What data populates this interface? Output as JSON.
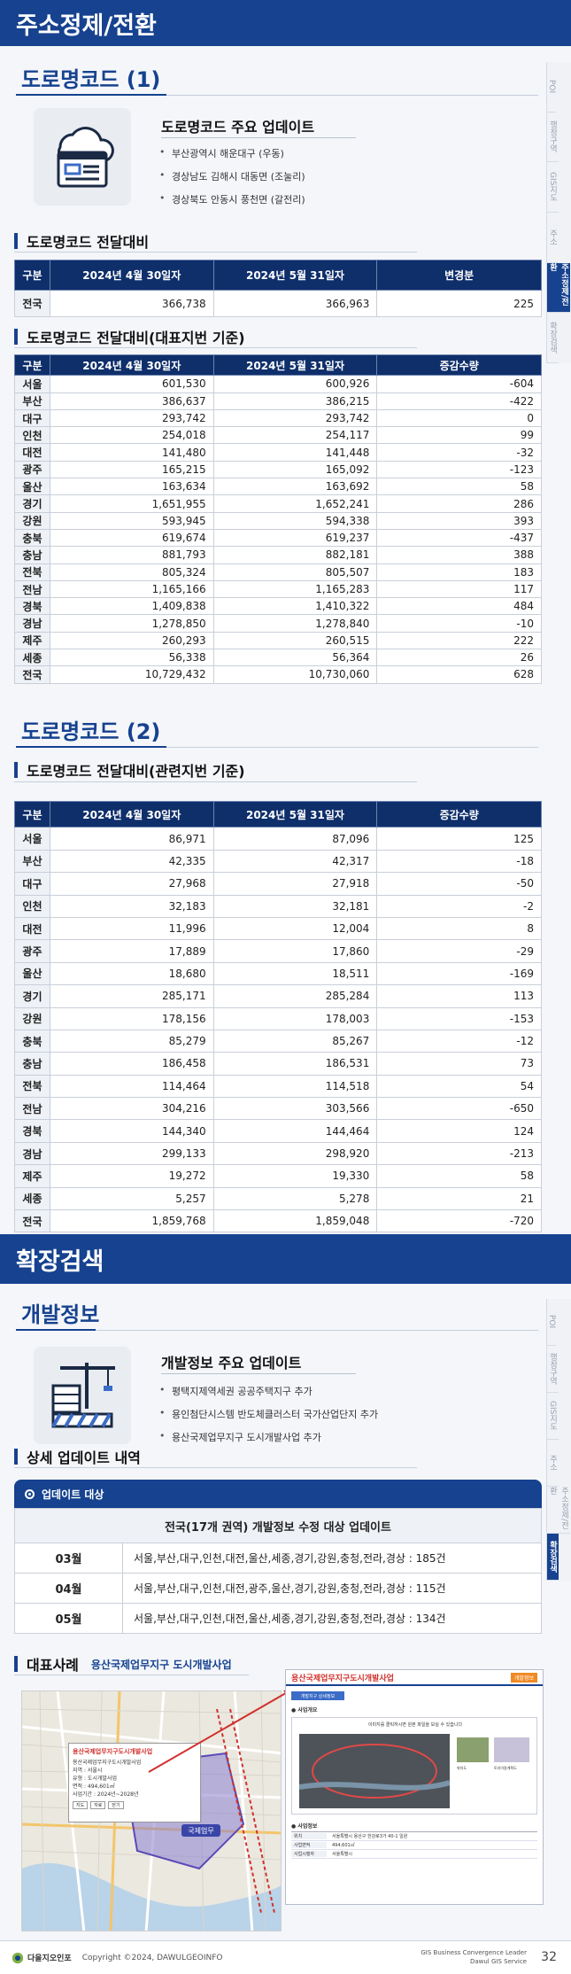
{
  "band1": {
    "title": "주소정제/전환"
  },
  "band2": {
    "title": "확장검색"
  },
  "sidenav1": [
    "POI",
    "행정구역",
    "GIS지도",
    "주소",
    "주소정제/전환",
    "확장검색"
  ],
  "sidenav1_active": 4,
  "sidenav2": [
    "POI",
    "행정구역",
    "GIS지도",
    "주소",
    "주소정제/전환",
    "확장검색"
  ],
  "sidenav2_active": 5,
  "road1": {
    "title": "도로명코드 (1)",
    "update_title": "도로명코드 주요 업데이트",
    "bullets": [
      "부산광역시 해운대구 (우동)",
      "경상남도 김해시 대동면 (조눌리)",
      "경상북도 안동시 풍천면 (갈전리)"
    ],
    "table1": {
      "title": "도로명코드 전달대비",
      "headers": [
        "구분",
        "2024년 4월 30일자",
        "2024년 5월 31일자",
        "변경분"
      ],
      "rows": [
        [
          "전국",
          "366,738",
          "366,963",
          "225"
        ]
      ]
    },
    "table2": {
      "title": "도로명코드 전달대비(대표지번 기준)",
      "headers": [
        "구분",
        "2024년 4월 30일자",
        "2024년 5월 31일자",
        "증감수량"
      ],
      "rows": [
        [
          "서울",
          "601,530",
          "600,926",
          "-604"
        ],
        [
          "부산",
          "386,637",
          "386,215",
          "-422"
        ],
        [
          "대구",
          "293,742",
          "293,742",
          "0"
        ],
        [
          "인천",
          "254,018",
          "254,117",
          "99"
        ],
        [
          "대전",
          "141,480",
          "141,448",
          "-32"
        ],
        [
          "광주",
          "165,215",
          "165,092",
          "-123"
        ],
        [
          "울산",
          "163,634",
          "163,692",
          "58"
        ],
        [
          "경기",
          "1,651,955",
          "1,652,241",
          "286"
        ],
        [
          "강원",
          "593,945",
          "594,338",
          "393"
        ],
        [
          "충북",
          "619,674",
          "619,237",
          "-437"
        ],
        [
          "충남",
          "881,793",
          "882,181",
          "388"
        ],
        [
          "전북",
          "805,324",
          "805,507",
          "183"
        ],
        [
          "전남",
          "1,165,166",
          "1,165,283",
          "117"
        ],
        [
          "경북",
          "1,409,838",
          "1,410,322",
          "484"
        ],
        [
          "경남",
          "1,278,850",
          "1,278,840",
          "-10"
        ],
        [
          "제주",
          "260,293",
          "260,515",
          "222"
        ],
        [
          "세종",
          "56,338",
          "56,364",
          "26"
        ],
        [
          "전국",
          "10,729,432",
          "10,730,060",
          "628"
        ]
      ]
    }
  },
  "road2": {
    "title": "도로명코드 (2)",
    "table": {
      "title": "도로명코드 전달대비(관련지번 기준)",
      "headers": [
        "구분",
        "2024년 4월 30일자",
        "2024년 5월 31일자",
        "증감수량"
      ],
      "rows": [
        [
          "서울",
          "86,971",
          "87,096",
          "125"
        ],
        [
          "부산",
          "42,335",
          "42,317",
          "-18"
        ],
        [
          "대구",
          "27,968",
          "27,918",
          "-50"
        ],
        [
          "인천",
          "32,183",
          "32,181",
          "-2"
        ],
        [
          "대전",
          "11,996",
          "12,004",
          "8"
        ],
        [
          "광주",
          "17,889",
          "17,860",
          "-29"
        ],
        [
          "울산",
          "18,680",
          "18,511",
          "-169"
        ],
        [
          "경기",
          "285,171",
          "285,284",
          "113"
        ],
        [
          "강원",
          "178,156",
          "178,003",
          "-153"
        ],
        [
          "충북",
          "85,279",
          "85,267",
          "-12"
        ],
        [
          "충남",
          "186,458",
          "186,531",
          "73"
        ],
        [
          "전북",
          "114,464",
          "114,518",
          "54"
        ],
        [
          "전남",
          "304,216",
          "303,566",
          "-650"
        ],
        [
          "경북",
          "144,340",
          "144,464",
          "124"
        ],
        [
          "경남",
          "299,133",
          "298,920",
          "-213"
        ],
        [
          "제주",
          "19,272",
          "19,330",
          "58"
        ],
        [
          "세종",
          "5,257",
          "5,278",
          "21"
        ],
        [
          "전국",
          "1,859,768",
          "1,859,048",
          "-720"
        ]
      ]
    }
  },
  "dev": {
    "title": "개발정보",
    "update_title": "개발정보 주요 업데이트",
    "bullets": [
      "평택지제역세권 공공주택지구 추가",
      "용인첨단시스템 반도체클러스터 국가산업단지 추가",
      "용산국제업무지구 도시개발사업 추가"
    ],
    "detail_title": "상세 업데이트 내역",
    "box_label": "업데이트 대상",
    "box_header": "전국(17개 권역) 개발정보 수정 대상 업데이트",
    "months": [
      {
        "month": "03월",
        "text": "서울,부산,대구,인천,대전,울산,세종,경기,강원,충청,전라,경상 : 185건"
      },
      {
        "month": "04월",
        "text": "서울,부산,대구,인천,대전,광주,울산,경기,강원,충청,전라,경상 : 115건"
      },
      {
        "month": "05월",
        "text": "서울,부산,대구,인천,대전,울산,세종,경기,강원,충청,전라,경상 : 134건"
      }
    ],
    "case_label": "대표사례",
    "case_title": "용산국제업무지구 도시개발사업",
    "popup_title": "용산국제업무지구도시개발사업",
    "popup_rows": [
      "용산국제업무지구도시개발사업",
      "지역 : 서울시",
      "유형 : 도시개발사업",
      "면적 : 494,601㎡",
      "사업기간 : 2024년~2028년"
    ],
    "popup_btns": [
      "지도",
      "자료",
      "닫기"
    ],
    "detail_popup_title": "용산국제업무지구도시개발사업",
    "detail_popup_badge": "개발정보",
    "detail_popup_tab": "개발지구 상세정보",
    "detail_popup_section1": "사업개요",
    "detail_popup_section2": "사업정보",
    "detail_popup_note": "이미지를 클릭하시면 원본 파일을 보실 수 있습니다",
    "thumb_labels": [
      "위치도",
      "토지이용계획도"
    ],
    "info_rows": [
      [
        "위치",
        "서울특별시 용산구 한강로3가 40-1 일원"
      ],
      [
        "사업면적",
        "494,601㎡"
      ],
      [
        "사업시행자",
        "서울특별시"
      ]
    ],
    "map_label": "국제업무"
  },
  "footer": {
    "brand": "다올지오인포",
    "copyright": "Copyright ©2024, DAWULGEOINFO",
    "tagline1": "GIS Business Convergence Leader",
    "tagline2": "Dawul GIS Service",
    "page": "32"
  },
  "colors": {
    "brand": "#16428f",
    "header_dark": "#0f2f6b",
    "accent_red": "#d0312d"
  }
}
